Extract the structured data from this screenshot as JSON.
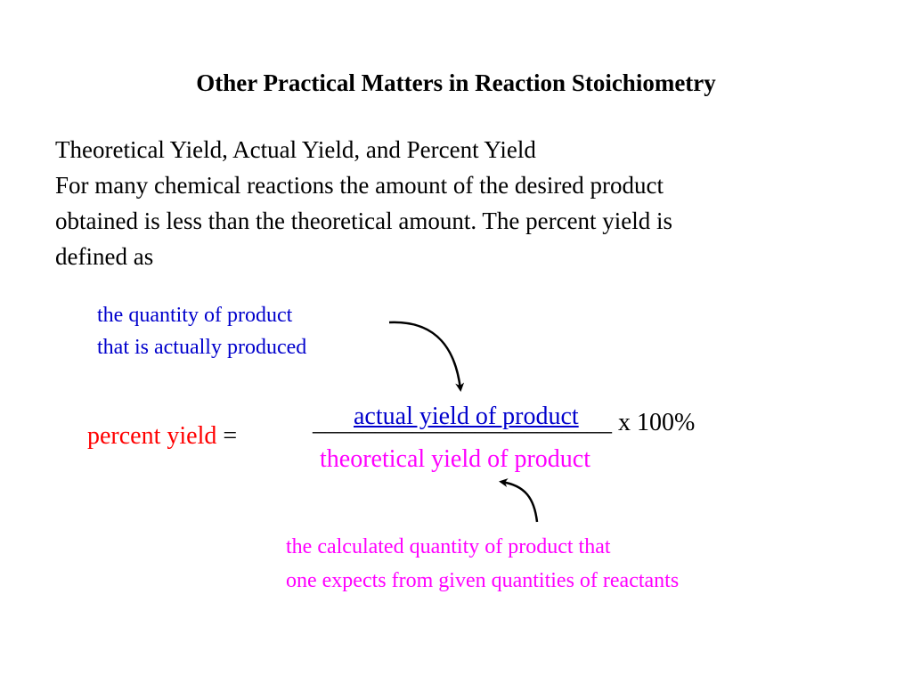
{
  "slide": {
    "title": "Other Practical Matters in Reaction Stoichiometry",
    "lines": [
      "Theoretical Yield, Actual Yield, and Percent Yield",
      "For many chemical reactions the amount of the desired product",
      "obtained is less than the theoretical amount.  The percent yield is",
      "defined as"
    ],
    "annotation_top": [
      "the quantity of product",
      "that is actually produced"
    ],
    "equation": {
      "lhs": "percent yield",
      "equals": " = ",
      "fraction_bar": "________________________",
      "numerator": "actual yield of product",
      "denominator": "theoretical yield of product",
      "multiplier": " x 100%"
    },
    "annotation_bottom": [
      "the calculated quantity of product that",
      "one expects from given quantities of reactants"
    ]
  },
  "colors": {
    "text": "#000000",
    "blue": "#0000cc",
    "red": "#ff0000",
    "magenta": "#ff00ff"
  },
  "icons": {
    "arrow_top": "curved-arrow-down",
    "arrow_bottom": "curved-arrow-up"
  }
}
